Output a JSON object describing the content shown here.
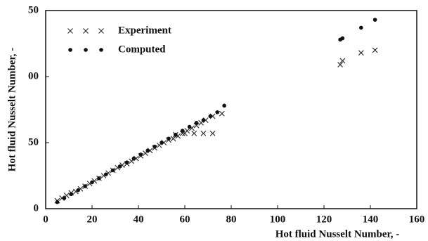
{
  "chart_data": {
    "type": "scatter",
    "xlabel": "Hot fluid Nusselt Number, -",
    "ylabel": "Hot fluid Nusselt Number, -",
    "xlim": [
      0,
      160
    ],
    "ylim": [
      0,
      150
    ],
    "xticks": [
      0,
      20,
      40,
      60,
      80,
      100,
      120,
      140,
      160
    ],
    "yticks": [
      0,
      50,
      {
        "value": 100,
        "label": "00"
      },
      {
        "value": 150,
        "label": "50"
      }
    ],
    "legend": "top-left",
    "series": [
      {
        "name": "Experiment",
        "marker": "x",
        "color": "#333333",
        "x": [
          5,
          7,
          9,
          11,
          13,
          15,
          17,
          19,
          21,
          23,
          25,
          27,
          29,
          31,
          33,
          35,
          37,
          39,
          41,
          43,
          45,
          47,
          49,
          51,
          53,
          55,
          57,
          59,
          61,
          63,
          65,
          67,
          69,
          72,
          76,
          56,
          60,
          64,
          68,
          72,
          127,
          128,
          136,
          142
        ],
        "y": [
          6,
          8,
          10,
          12,
          13,
          15,
          17,
          19,
          21,
          23,
          25,
          27,
          29,
          31,
          33,
          34,
          36,
          38,
          40,
          42,
          44,
          46,
          48,
          50,
          52,
          53,
          55,
          57,
          59,
          61,
          63,
          65,
          67,
          70,
          72,
          56,
          57,
          57,
          57,
          57,
          109,
          112,
          118,
          120
        ]
      },
      {
        "name": "Computed",
        "marker": "dot",
        "color": "#111111",
        "x": [
          5,
          8,
          11,
          14,
          17,
          20,
          23,
          26,
          29,
          32,
          35,
          38,
          41,
          44,
          47,
          50,
          53,
          56,
          59,
          62,
          65,
          68,
          71,
          74,
          77,
          127,
          128,
          136,
          142
        ],
        "y": [
          5,
          8,
          11,
          14,
          17,
          20,
          23,
          26,
          29,
          32,
          35,
          38,
          41,
          44,
          47,
          50,
          53,
          56,
          59,
          62,
          65,
          67,
          70,
          73,
          78,
          128,
          129,
          137,
          143
        ]
      }
    ]
  }
}
